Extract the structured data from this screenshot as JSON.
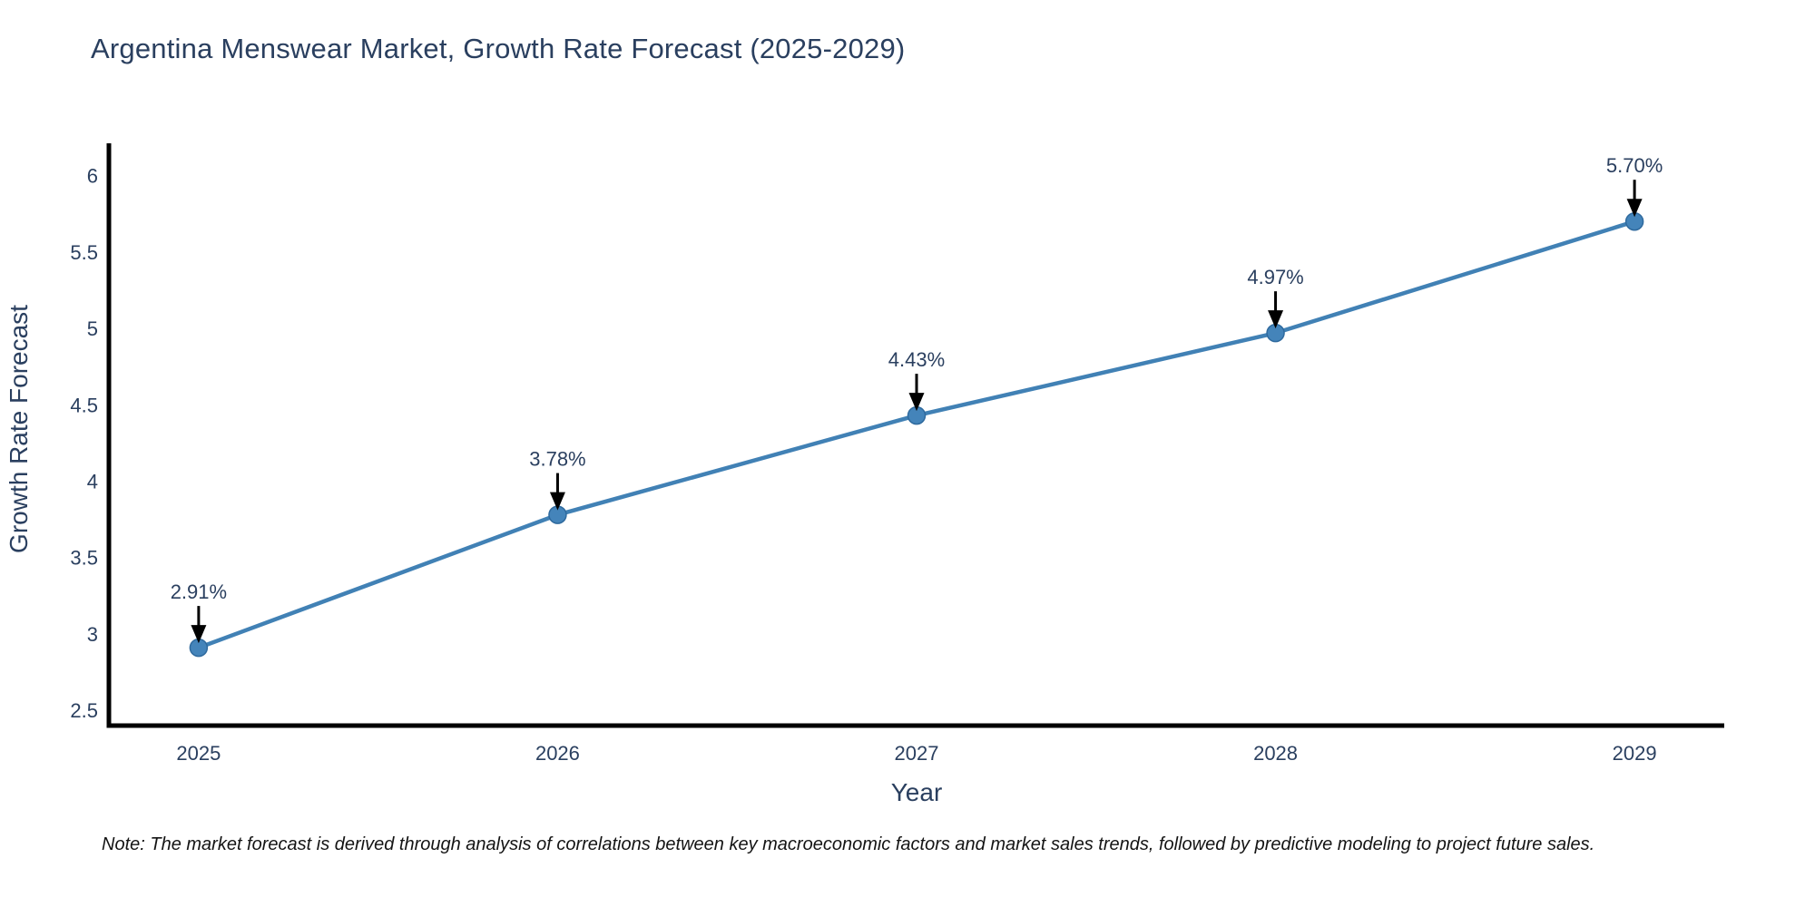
{
  "page": {
    "background": "#ffffff"
  },
  "chart_data": {
    "type": "line",
    "title": "Argentina Menswear Market, Growth Rate Forecast (2025-2029)",
    "xlabel": "Year",
    "ylabel": "Growth Rate Forecast",
    "x": [
      2025,
      2026,
      2027,
      2028,
      2029
    ],
    "series": [
      {
        "name": "Growth Rate Forecast",
        "values": [
          2.91,
          3.78,
          4.43,
          4.97,
          5.7
        ]
      }
    ],
    "point_labels": [
      "2.91%",
      "3.78%",
      "4.43%",
      "4.97%",
      "5.70%"
    ],
    "xtick_labels": [
      "2025",
      "2026",
      "2027",
      "2028",
      "2029"
    ],
    "ytick_labels": [
      "6",
      "5.5",
      "5",
      "4.5",
      "4",
      "3.5",
      "3",
      "2.5"
    ],
    "ytick_values": [
      6,
      5.5,
      5,
      4.5,
      4,
      3.5,
      3,
      2.5
    ],
    "xlim": [
      2024.75,
      2029.25
    ],
    "ylim": [
      2.4,
      6.2
    ],
    "grid": false,
    "legend_position": "none",
    "colors": {
      "line": "#4181b5",
      "marker_fill": "#4484ba",
      "marker_edge": "#2f6a9e",
      "axis_spine": "#000000",
      "text": "#2a3f5f",
      "arrow": "#000000"
    }
  },
  "note": {
    "text": "Note: The market forecast is derived through analysis of correlations between key macroeconomic factors and market sales trends, followed by predictive modeling to project future sales."
  }
}
